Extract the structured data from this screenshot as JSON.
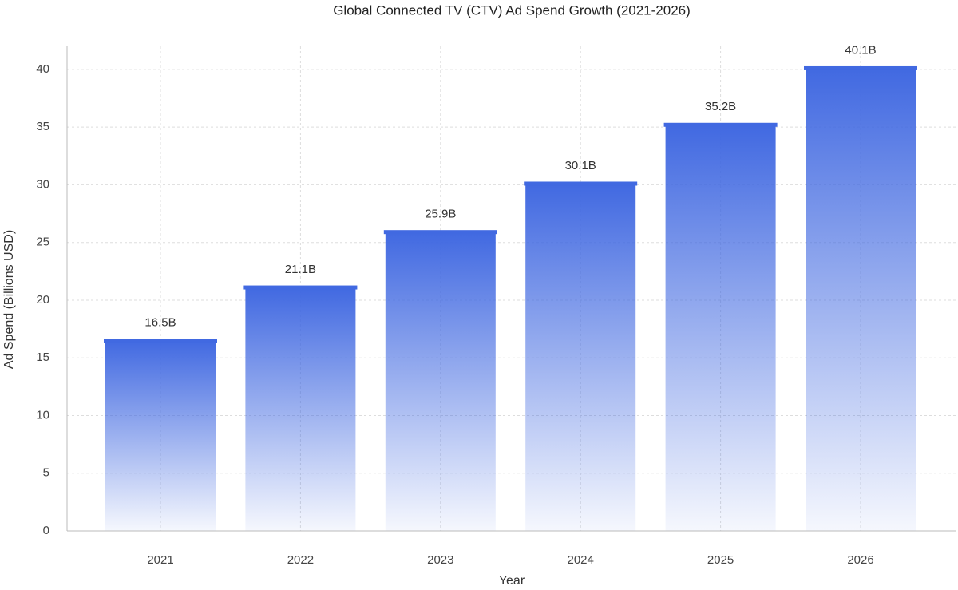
{
  "chart_data": {
    "type": "bar",
    "title": "Global Connected TV (CTV) Ad Spend Growth (2021-2026)",
    "x_label": "Year",
    "y_label": "Ad Spend (Billions USD)",
    "categories": [
      "2021",
      "2022",
      "2023",
      "2024",
      "2025",
      "2026"
    ],
    "values": [
      16.5,
      21.1,
      25.9,
      30.1,
      35.2,
      40.1
    ],
    "value_labels": [
      "16.5B",
      "21.1B",
      "25.9B",
      "30.1B",
      "35.2B",
      "40.1B"
    ],
    "color": "#4169e1",
    "ylim": [
      0,
      42
    ],
    "yticks": [
      0,
      5,
      10,
      15,
      20,
      25,
      30,
      35,
      40
    ],
    "grid": true
  }
}
